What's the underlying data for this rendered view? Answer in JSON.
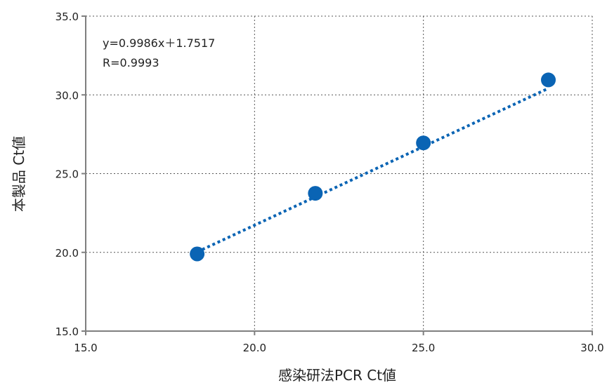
{
  "chart_data": {
    "type": "scatter",
    "xlabel": "感染研法PCR Ct値",
    "ylabel": "本製品 Ct値",
    "xlim": [
      15.0,
      30.0
    ],
    "ylim": [
      15.0,
      35.0
    ],
    "xticks": [
      "15.0",
      "20.0",
      "25.0",
      "30.0"
    ],
    "yticks": [
      "15.0",
      "20.0",
      "25.0",
      "30.0",
      "35.0"
    ],
    "grid": true,
    "annotations": [
      "y=0.9986x＋1.7517",
      "R=0.9993"
    ],
    "trendline": {
      "slope": 0.9986,
      "intercept": 1.7517,
      "x_range": [
        18.3,
        28.7
      ],
      "style": "dotted"
    },
    "points": [
      {
        "x": 18.3,
        "y": 19.9
      },
      {
        "x": 21.8,
        "y": 23.75
      },
      {
        "x": 25.0,
        "y": 26.95
      },
      {
        "x": 28.7,
        "y": 30.95
      }
    ],
    "colors": {
      "marker": "#0a64b4",
      "trendline": "#0a64b4",
      "axis": "#7f7f7f",
      "grid": "#555555"
    }
  }
}
